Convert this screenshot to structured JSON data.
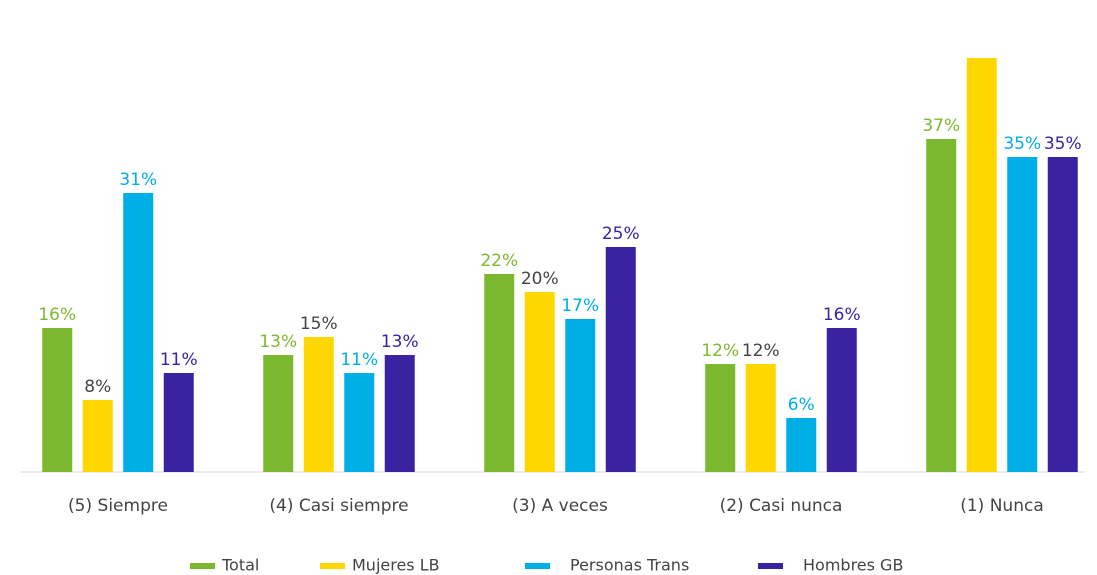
{
  "chart_data": {
    "type": "bar",
    "categories": [
      "(5) Siempre",
      "(4) Casi siempre",
      "(3) A veces",
      "(2) Casi nunca",
      "(1) Nunca"
    ],
    "series": [
      {
        "name": "Total",
        "color": "#7cb82f",
        "label_color": "#7cb82f",
        "values": [
          16,
          13,
          22,
          12,
          37
        ],
        "value_labels": [
          "16%",
          "13%",
          "22%",
          "12%",
          "37%"
        ]
      },
      {
        "name": "Mujeres LB",
        "color": "#ffd700",
        "label_color": "#444444",
        "values": [
          8,
          15,
          20,
          12,
          46
        ],
        "value_labels": [
          "8%",
          "15%",
          "20%",
          "12%",
          null
        ]
      },
      {
        "name": "Personas Trans",
        "color": "#00aee6",
        "label_color": "#00aee6",
        "values": [
          31,
          11,
          17,
          6,
          35
        ],
        "value_labels": [
          "31%",
          "11%",
          "17%",
          "6%",
          "35%"
        ]
      },
      {
        "name": "Hombres GB",
        "color": "#3b22a0",
        "label_color": "#3b22a0",
        "values": [
          11,
          13,
          25,
          16,
          35
        ],
        "value_labels": [
          "11%",
          "13%",
          "25%",
          "16%",
          "35%"
        ]
      }
    ],
    "ylim": [
      0,
      46
    ]
  }
}
